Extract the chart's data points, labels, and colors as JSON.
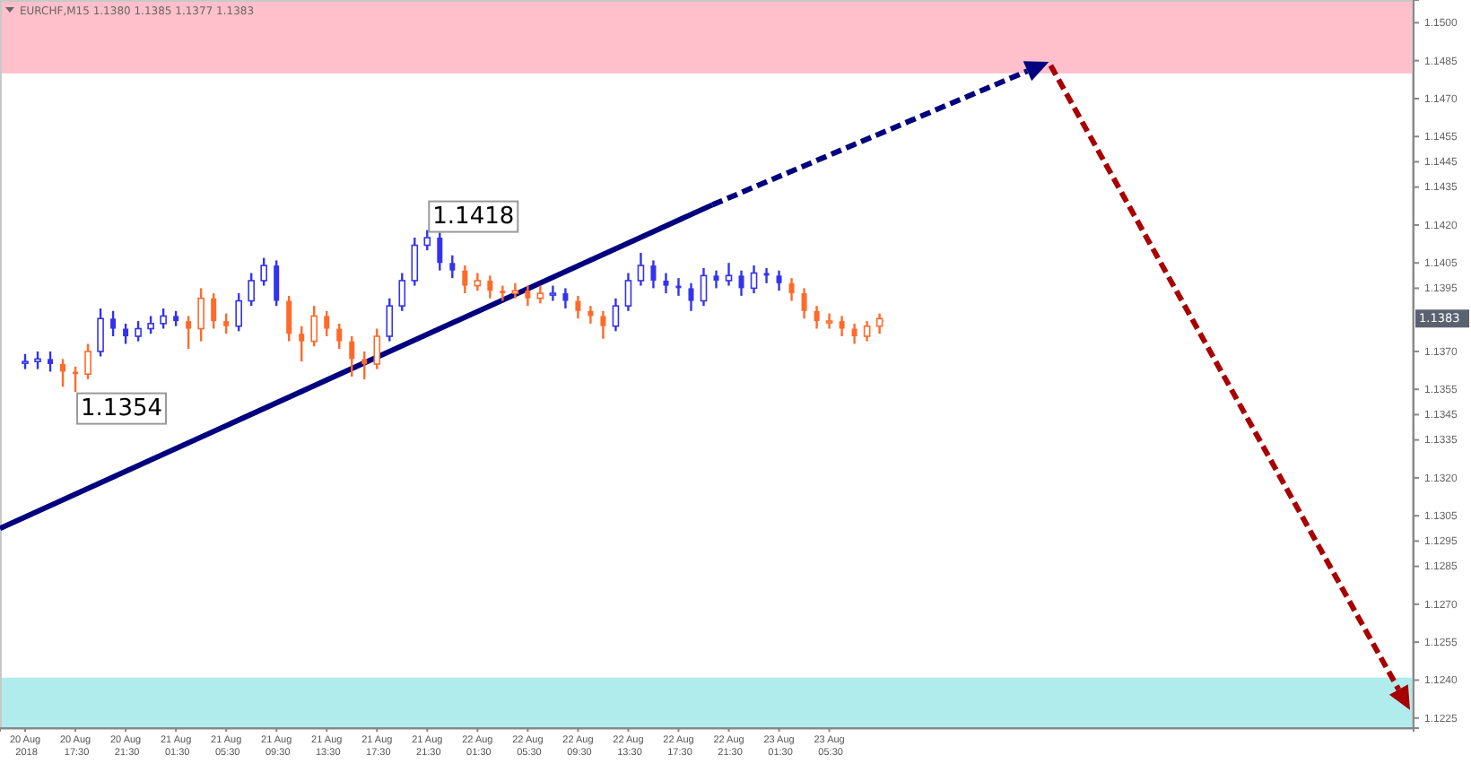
{
  "chart_data": {
    "type": "candlestick",
    "title": "EURCHF,M15  1.1380 1.1385 1.1377 1.1383",
    "xlim": [
      "2018-08-20T11:30",
      "2018-08-25T04:00"
    ],
    "ylim": [
      1.1221,
      1.1509
    ],
    "xticks": [
      {
        "value": "2018-08-20T13:30",
        "label": "20 Aug 2018"
      },
      {
        "value": "2018-08-20T17:30",
        "label": "20 Aug 17:30"
      },
      {
        "value": "2018-08-20T21:30",
        "label": "20 Aug 21:30"
      },
      {
        "value": "2018-08-21T01:30",
        "label": "21 Aug 01:30"
      },
      {
        "value": "2018-08-21T05:30",
        "label": "21 Aug 05:30"
      },
      {
        "value": "2018-08-21T09:30",
        "label": "21 Aug 09:30"
      },
      {
        "value": "2018-08-21T13:30",
        "label": "21 Aug 13:30"
      },
      {
        "value": "2018-08-21T17:30",
        "label": "21 Aug 17:30"
      },
      {
        "value": "2018-08-21T21:30",
        "label": "21 Aug 21:30"
      },
      {
        "value": "2018-08-22T01:30",
        "label": "22 Aug 01:30"
      },
      {
        "value": "2018-08-22T05:30",
        "label": "22 Aug 05:30"
      },
      {
        "value": "2018-08-22T09:30",
        "label": "22 Aug 09:30"
      },
      {
        "value": "2018-08-22T13:30",
        "label": "22 Aug 13:30"
      },
      {
        "value": "2018-08-22T17:30",
        "label": "22 Aug 17:30"
      },
      {
        "value": "2018-08-22T21:30",
        "label": "22 Aug 21:30"
      },
      {
        "value": "2018-08-23T01:30",
        "label": "23 Aug 01:30"
      },
      {
        "value": "2018-08-23T05:30",
        "label": "23 Aug 05:30"
      }
    ],
    "yticks": [
      {
        "value": 1.15,
        "label": "1.1500"
      },
      {
        "value": 1.1485,
        "label": "1.1485"
      },
      {
        "value": 1.147,
        "label": "1.1470"
      },
      {
        "value": 1.1455,
        "label": "1.1455"
      },
      {
        "value": 1.1445,
        "label": "1.1445"
      },
      {
        "value": 1.1435,
        "label": "1.1435"
      },
      {
        "value": 1.142,
        "label": "1.1420"
      },
      {
        "value": 1.1405,
        "label": "1.1405"
      },
      {
        "value": 1.1395,
        "label": "1.1395"
      },
      {
        "value": 1.137,
        "label": "1.1370"
      },
      {
        "value": 1.1355,
        "label": "1.1355"
      },
      {
        "value": 1.1345,
        "label": "1.1345"
      },
      {
        "value": 1.1335,
        "label": "1.1335"
      },
      {
        "value": 1.132,
        "label": "1.1320"
      },
      {
        "value": 1.1305,
        "label": "1.1305"
      },
      {
        "value": 1.1295,
        "label": "1.1295"
      },
      {
        "value": 1.1285,
        "label": "1.1285"
      },
      {
        "value": 1.127,
        "label": "1.1270"
      },
      {
        "value": 1.1255,
        "label": "1.1255"
      },
      {
        "value": 1.124,
        "label": "1.1240"
      },
      {
        "value": 1.1225,
        "label": "1.1225"
      }
    ],
    "grid": false,
    "bands": [
      {
        "axis": "y",
        "from": 1.148,
        "to": 1.1509,
        "color": "#ffc0cb"
      },
      {
        "axis": "y",
        "from": 1.1221,
        "to": 1.1241,
        "color": "#b0ecec"
      }
    ],
    "annotations": [
      {
        "text": "1.1354",
        "x": "2018-08-20T17:30",
        "y": 1.1354
      },
      {
        "text": "1.1418",
        "x": "2018-08-21T21:30",
        "y": 1.1418
      },
      {
        "text": "1.1383",
        "y": 1.1383
      }
    ],
    "series": [
      {
        "x": [
          "2018-08-20T13:30",
          "2018-08-20T14:30",
          "2018-08-20T15:30",
          "2018-08-20T16:30",
          "2018-08-20T17:30",
          "2018-08-20T18:30",
          "2018-08-20T19:30",
          "2018-08-20T20:30",
          "2018-08-20T21:30",
          "2018-08-20T22:30",
          "2018-08-20T23:30",
          "2018-08-21T00:30",
          "2018-08-21T01:30",
          "2018-08-21T02:30",
          "2018-08-21T03:30",
          "2018-08-21T04:30",
          "2018-08-21T05:30",
          "2018-08-21T06:30",
          "2018-08-21T07:30",
          "2018-08-21T08:30",
          "2018-08-21T09:30",
          "2018-08-21T10:30",
          "2018-08-21T11:30",
          "2018-08-21T12:30",
          "2018-08-21T13:30",
          "2018-08-21T14:30",
          "2018-08-21T15:30",
          "2018-08-21T16:30",
          "2018-08-21T17:30",
          "2018-08-21T18:30",
          "2018-08-21T19:30",
          "2018-08-21T20:30",
          "2018-08-21T21:30",
          "2018-08-21T22:30",
          "2018-08-21T23:30",
          "2018-08-22T00:30",
          "2018-08-22T01:30",
          "2018-08-22T02:30",
          "2018-08-22T03:30",
          "2018-08-22T04:30",
          "2018-08-22T05:30",
          "2018-08-22T06:30",
          "2018-08-22T07:30",
          "2018-08-22T08:30",
          "2018-08-22T09:30",
          "2018-08-22T10:30",
          "2018-08-22T11:30",
          "2018-08-22T12:30",
          "2018-08-22T13:30",
          "2018-08-22T14:30",
          "2018-08-22T15:30",
          "2018-08-22T16:30",
          "2018-08-22T17:30",
          "2018-08-22T18:30",
          "2018-08-22T19:30",
          "2018-08-22T20:30",
          "2018-08-22T21:30",
          "2018-08-22T22:30",
          "2018-08-22T23:30",
          "2018-08-23T00:30",
          "2018-08-23T01:30",
          "2018-08-23T02:30",
          "2018-08-23T03:30",
          "2018-08-23T04:30",
          "2018-08-23T05:30",
          "2018-08-23T06:30",
          "2018-08-23T07:30",
          "2018-08-23T08:30",
          "2018-08-23T09:30"
        ],
        "ohlc": [
          [
            1.1366,
            1.1369,
            1.1363,
            1.1366
          ],
          [
            1.1366,
            1.137,
            1.1363,
            1.1367
          ],
          [
            1.1367,
            1.137,
            1.1362,
            1.1365
          ],
          [
            1.1365,
            1.1367,
            1.1356,
            1.1362
          ],
          [
            1.1362,
            1.1364,
            1.1354,
            1.1361
          ],
          [
            1.1361,
            1.1373,
            1.1359,
            1.137
          ],
          [
            1.137,
            1.1387,
            1.1368,
            1.1383
          ],
          [
            1.1383,
            1.1386,
            1.1376,
            1.1379
          ],
          [
            1.1379,
            1.1381,
            1.1373,
            1.1376
          ],
          [
            1.1376,
            1.1382,
            1.1374,
            1.1379
          ],
          [
            1.1379,
            1.1384,
            1.1377,
            1.1381
          ],
          [
            1.1381,
            1.1387,
            1.1379,
            1.1384
          ],
          [
            1.1384,
            1.1386,
            1.138,
            1.1382
          ],
          [
            1.1382,
            1.1384,
            1.1371,
            1.1379
          ],
          [
            1.1379,
            1.1395,
            1.1374,
            1.1391
          ],
          [
            1.1391,
            1.1393,
            1.1379,
            1.1382
          ],
          [
            1.1382,
            1.1385,
            1.1377,
            1.138
          ],
          [
            1.138,
            1.1393,
            1.1378,
            1.139
          ],
          [
            1.139,
            1.1401,
            1.1388,
            1.1398
          ],
          [
            1.1398,
            1.1407,
            1.1396,
            1.1404
          ],
          [
            1.1404,
            1.1406,
            1.1388,
            1.139
          ],
          [
            1.139,
            1.1392,
            1.1374,
            1.1377
          ],
          [
            1.1377,
            1.138,
            1.1366,
            1.1374
          ],
          [
            1.1374,
            1.1388,
            1.1372,
            1.1384
          ],
          [
            1.1384,
            1.1386,
            1.1376,
            1.1379
          ],
          [
            1.1379,
            1.1381,
            1.1371,
            1.1374
          ],
          [
            1.1374,
            1.1376,
            1.136,
            1.1367
          ],
          [
            1.1367,
            1.137,
            1.1359,
            1.1365
          ],
          [
            1.1365,
            1.1379,
            1.1363,
            1.1376
          ],
          [
            1.1376,
            1.1391,
            1.1374,
            1.1388
          ],
          [
            1.1388,
            1.1401,
            1.1386,
            1.1398
          ],
          [
            1.1398,
            1.1415,
            1.1396,
            1.1412
          ],
          [
            1.1412,
            1.1418,
            1.141,
            1.1415
          ],
          [
            1.1415,
            1.1417,
            1.1402,
            1.1405
          ],
          [
            1.1405,
            1.1408,
            1.1399,
            1.1402
          ],
          [
            1.1402,
            1.1404,
            1.1393,
            1.1396
          ],
          [
            1.1396,
            1.1401,
            1.1394,
            1.1398
          ],
          [
            1.1398,
            1.14,
            1.1391,
            1.1394
          ],
          [
            1.1394,
            1.1396,
            1.139,
            1.1393
          ],
          [
            1.1393,
            1.1397,
            1.1391,
            1.1394
          ],
          [
            1.1394,
            1.1396,
            1.1388,
            1.1391
          ],
          [
            1.1391,
            1.1396,
            1.1389,
            1.1393
          ],
          [
            1.1393,
            1.1396,
            1.139,
            1.1393
          ],
          [
            1.1393,
            1.1395,
            1.1387,
            1.139
          ],
          [
            1.139,
            1.1392,
            1.1383,
            1.1386
          ],
          [
            1.1386,
            1.1388,
            1.1381,
            1.1384
          ],
          [
            1.1384,
            1.1386,
            1.1375,
            1.138
          ],
          [
            1.138,
            1.1391,
            1.1378,
            1.1388
          ],
          [
            1.1388,
            1.1401,
            1.1386,
            1.1398
          ],
          [
            1.1398,
            1.1409,
            1.1396,
            1.1404
          ],
          [
            1.1404,
            1.1406,
            1.1395,
            1.1398
          ],
          [
            1.1398,
            1.1401,
            1.1393,
            1.1396
          ],
          [
            1.1396,
            1.1399,
            1.1392,
            1.1395
          ],
          [
            1.1395,
            1.1397,
            1.1386,
            1.139
          ],
          [
            1.139,
            1.1403,
            1.1388,
            1.14
          ],
          [
            1.14,
            1.1402,
            1.1395,
            1.1398
          ],
          [
            1.1398,
            1.1405,
            1.1396,
            1.14
          ],
          [
            1.14,
            1.1402,
            1.1392,
            1.1395
          ],
          [
            1.1395,
            1.1404,
            1.1393,
            1.1401
          ],
          [
            1.1401,
            1.1403,
            1.1397,
            1.14
          ],
          [
            1.14,
            1.1402,
            1.1394,
            1.1397
          ],
          [
            1.1397,
            1.1399,
            1.139,
            1.1393
          ],
          [
            1.1393,
            1.1395,
            1.1383,
            1.1386
          ],
          [
            1.1386,
            1.1388,
            1.1379,
            1.1382
          ],
          [
            1.1382,
            1.1385,
            1.1379,
            1.1382
          ],
          [
            1.1382,
            1.1384,
            1.1376,
            1.1379
          ],
          [
            1.1379,
            1.1381,
            1.1373,
            1.1376
          ],
          [
            1.1376,
            1.1382,
            1.1374,
            1.138
          ],
          [
            1.138,
            1.1385,
            1.1377,
            1.1383
          ]
        ],
        "colors": [
          "#3333ee",
          "#3333ee",
          "#3333ee",
          "#ff6a2a",
          "#ff6a2a",
          "#ff6a2a",
          "#3333ee",
          "#3333ee",
          "#3333ee",
          "#3333ee",
          "#3333ee",
          "#3333ee",
          "#3333ee",
          "#ff6a2a",
          "#ff6a2a",
          "#ff6a2a",
          "#ff6a2a",
          "#3333ee",
          "#3333ee",
          "#3333ee",
          "#3333ee",
          "#ff6a2a",
          "#ff6a2a",
          "#ff6a2a",
          "#ff6a2a",
          "#ff6a2a",
          "#ff6a2a",
          "#ff6a2a",
          "#ff6a2a",
          "#3333ee",
          "#3333ee",
          "#3333ee",
          "#3333ee",
          "#3333ee",
          "#3333ee",
          "#ff6a2a",
          "#ff6a2a",
          "#ff6a2a",
          "#ff6a2a",
          "#ff6a2a",
          "#ff6a2a",
          "#ff6a2a",
          "#3333ee",
          "#3333ee",
          "#ff6a2a",
          "#ff6a2a",
          "#ff6a2a",
          "#3333ee",
          "#3333ee",
          "#3333ee",
          "#3333ee",
          "#3333ee",
          "#3333ee",
          "#3333ee",
          "#3333ee",
          "#3333ee",
          "#3333ee",
          "#3333ee",
          "#3333ee",
          "#3333ee",
          "#3333ee",
          "#ff6a2a",
          "#ff6a2a",
          "#ff6a2a",
          "#ff6a2a",
          "#ff6a2a",
          "#ff6a2a",
          "#ff6a2a",
          "#ff6a2a"
        ]
      },
      {
        "type": "line",
        "x": [
          "2018-08-20T11:30",
          "2018-08-22T20:12"
        ],
        "values": [
          1.13,
          1.1428
        ],
        "color": "#00007f",
        "line_style": "solid",
        "marker": "none"
      }
    ]
  }
}
